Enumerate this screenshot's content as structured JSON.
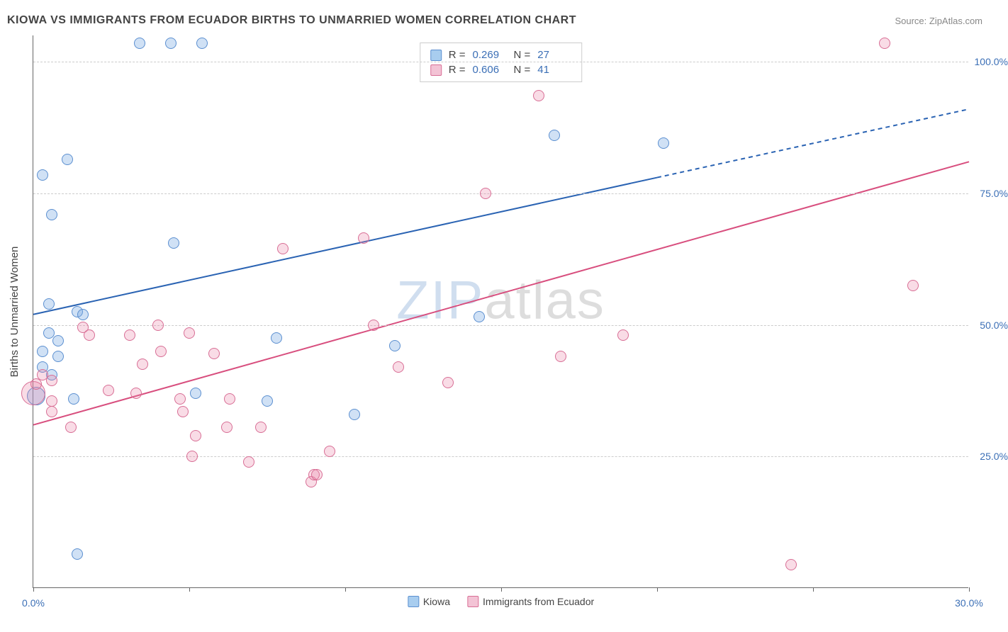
{
  "title": "KIOWA VS IMMIGRANTS FROM ECUADOR BIRTHS TO UNMARRIED WOMEN CORRELATION CHART",
  "source": "Source: ZipAtlas.com",
  "y_axis_label": "Births to Unmarried Women",
  "watermark_part1": "ZIP",
  "watermark_part2": "atlas",
  "chart": {
    "type": "scatter",
    "background_color": "#ffffff",
    "grid_color": "#cccccc",
    "axis_color": "#666666",
    "tick_label_color": "#3b6fb6",
    "text_color": "#444444",
    "title_fontsize": 16,
    "label_fontsize": 15,
    "tick_fontsize": 14,
    "xlim": [
      0,
      30
    ],
    "ylim": [
      0,
      105
    ],
    "y_ticks": [
      25,
      50,
      75,
      100
    ],
    "y_tick_labels": [
      "25.0%",
      "50.0%",
      "75.0%",
      "100.0%"
    ],
    "x_ticks": [
      0,
      5,
      10,
      15,
      20,
      25,
      30
    ],
    "x_tick_labels": [
      "0.0%",
      "",
      "",
      "",
      "",
      "",
      "30.0%"
    ],
    "marker_radius": 8,
    "marker_stroke_width": 1.5,
    "line_width": 2,
    "series": [
      {
        "name": "Kiowa",
        "label": "Kiowa",
        "fill_color": "rgba(120,170,225,0.35)",
        "stroke_color": "#5b8fd0",
        "swatch_fill": "#a8cdef",
        "swatch_stroke": "#5b8fd0",
        "line_color": "#2a63b3",
        "R": "0.269",
        "N": "27",
        "regression": {
          "x1": 0,
          "y1": 52,
          "x2": 20,
          "y2": 78,
          "extend_to_x": 30,
          "extend_y": 91
        },
        "large_marker": {
          "x": 0.1,
          "y": 36.5,
          "r": 13
        },
        "points": [
          [
            0.3,
            78.5
          ],
          [
            0.8,
            47
          ],
          [
            0.6,
            71
          ],
          [
            0.5,
            54
          ],
          [
            0.6,
            40.5
          ],
          [
            0.8,
            44
          ],
          [
            0.5,
            48.5
          ],
          [
            0.3,
            45
          ],
          [
            0.3,
            42
          ],
          [
            1.1,
            81.5
          ],
          [
            1.4,
            6.5
          ],
          [
            1.3,
            36
          ],
          [
            1.4,
            52.5
          ],
          [
            1.6,
            52
          ],
          [
            3.4,
            103.5
          ],
          [
            4.4,
            103.5
          ],
          [
            4.5,
            65.5
          ],
          [
            5.4,
            103.5
          ],
          [
            5.2,
            37
          ],
          [
            7.5,
            35.5
          ],
          [
            7.8,
            47.5
          ],
          [
            10.3,
            33
          ],
          [
            11.6,
            46
          ],
          [
            14.3,
            51.5
          ],
          [
            16.7,
            86
          ],
          [
            20.2,
            84.5
          ]
        ]
      },
      {
        "name": "Immigrants from Ecuador",
        "label": "Immigrants from Ecuador",
        "fill_color": "rgba(235,130,165,0.28)",
        "stroke_color": "#d86e95",
        "swatch_fill": "#f3c3d5",
        "swatch_stroke": "#d86e95",
        "line_color": "#d84e7e",
        "R": "0.606",
        "N": "41",
        "regression": {
          "x1": 0,
          "y1": 31,
          "x2": 30,
          "y2": 81,
          "extend_to_x": 30,
          "extend_y": 81
        },
        "large_marker": {
          "x": 0.0,
          "y": 37,
          "r": 17
        },
        "points": [
          [
            0.1,
            38.8
          ],
          [
            0.3,
            40.5
          ],
          [
            0.6,
            35.5
          ],
          [
            0.6,
            33.5
          ],
          [
            0.6,
            39.5
          ],
          [
            1.2,
            30.5
          ],
          [
            1.6,
            49.5
          ],
          [
            1.8,
            48
          ],
          [
            2.4,
            37.5
          ],
          [
            3.1,
            48
          ],
          [
            3.3,
            37
          ],
          [
            3.5,
            42.5
          ],
          [
            4.0,
            50
          ],
          [
            4.1,
            45
          ],
          [
            4.8,
            33.5
          ],
          [
            4.7,
            36
          ],
          [
            5.2,
            29
          ],
          [
            5.0,
            48.5
          ],
          [
            5.1,
            25
          ],
          [
            5.8,
            44.5
          ],
          [
            6.2,
            30.5
          ],
          [
            6.3,
            36
          ],
          [
            6.9,
            24
          ],
          [
            7.3,
            30.5
          ],
          [
            8.0,
            64.5
          ],
          [
            8.9,
            20.2
          ],
          [
            9.0,
            21.5
          ],
          [
            9.1,
            21.5
          ],
          [
            9.5,
            26
          ],
          [
            10.6,
            66.5
          ],
          [
            10.9,
            50
          ],
          [
            11.7,
            42
          ],
          [
            13.3,
            39
          ],
          [
            14.5,
            75
          ],
          [
            16.2,
            93.5
          ],
          [
            16.9,
            44
          ],
          [
            18.9,
            48
          ],
          [
            24.3,
            4.5
          ],
          [
            27.3,
            103.5
          ],
          [
            28.2,
            57.5
          ]
        ]
      }
    ],
    "legend_bottom": [
      {
        "label": "Kiowa",
        "series": 0
      },
      {
        "label": "Immigrants from Ecuador",
        "series": 1
      }
    ]
  }
}
